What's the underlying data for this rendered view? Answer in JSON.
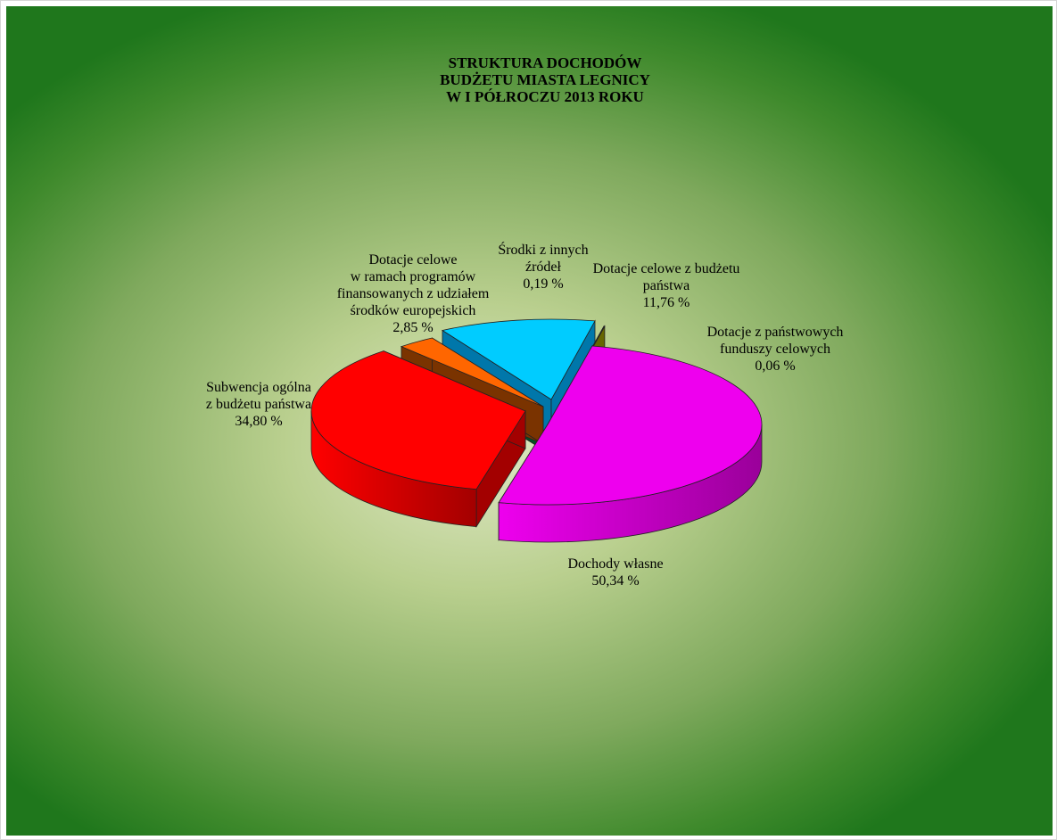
{
  "chart_data": {
    "type": "pie",
    "title": [
      "STRUKTURA  DOCHODÓW",
      "BUDŻETU MIASTA LEGNICY",
      "W  I  PÓŁROCZU 2013  ROKU"
    ],
    "slices": [
      {
        "label": [
          "Dochody własne"
        ],
        "value": 50.34,
        "value_text": "50,34 %",
        "color": "#ee00ee",
        "side_color": "#9a009a"
      },
      {
        "label": [
          "Subwencja ogólna",
          "z budżetu państwa"
        ],
        "value": 34.8,
        "value_text": "34,80 %",
        "color": "#ff0000",
        "side_color": "#a30000"
      },
      {
        "label": [
          "Dotacje celowe",
          "w  ramach programów",
          "finansowanych z udziałem",
          "środków europejskich"
        ],
        "value": 2.85,
        "value_text": "2,85 %",
        "color": "#ff6600",
        "side_color": "#7a3300"
      },
      {
        "label": [
          "Środki z innych",
          "źródeł"
        ],
        "value": 0.19,
        "value_text": "0,19 %",
        "color": "#00aa44",
        "side_color": "#005522"
      },
      {
        "label": [
          "Dotacje celowe z budżetu",
          "państwa"
        ],
        "value": 11.76,
        "value_text": "11,76 %",
        "color": "#00ccff",
        "side_color": "#0077aa"
      },
      {
        "label": [
          "Dotacje z  państwowych",
          "funduszy celowych"
        ],
        "value": 0.06,
        "value_text": "0,06 %",
        "color": "#bbbb00",
        "side_color": "#666600"
      }
    ],
    "legend": "none",
    "view": "3d-exploded"
  }
}
